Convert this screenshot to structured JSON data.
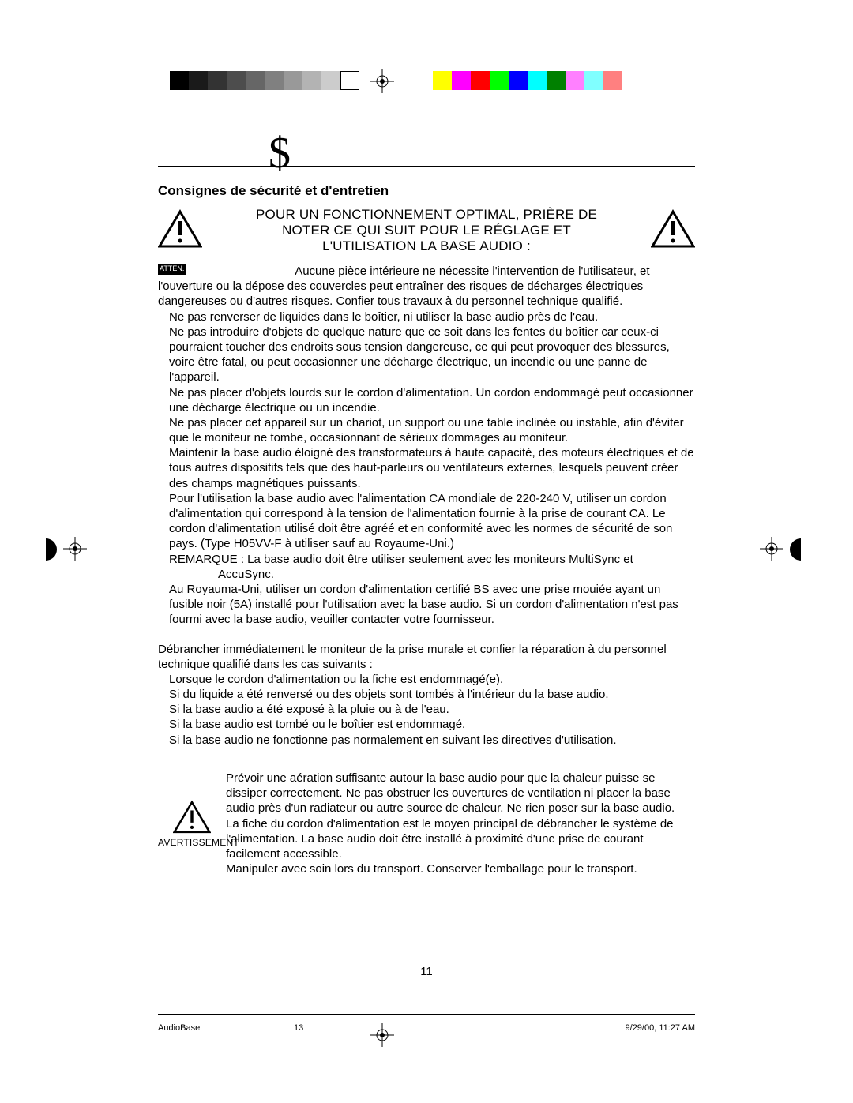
{
  "colorbars": {
    "grayscale": [
      "#000000",
      "#1a1a1a",
      "#333333",
      "#4d4d4d",
      "#666666",
      "#808080",
      "#999999",
      "#b3b3b3",
      "#cccccc",
      "#ffffff"
    ],
    "colors": [
      "#ffff00",
      "#ff00ff",
      "#ff0000",
      "#00ff00",
      "#0000ff",
      "#00ffff",
      "#008000",
      "#ff80ff",
      "#80ffff",
      "#ff8080"
    ]
  },
  "header": {
    "decorative_char": "$",
    "section_title": "Consignes de sécurité et d'entretien"
  },
  "warning_main": {
    "line1": "POUR UN FONCTIONNEMENT OPTIMAL, PRIÈRE DE",
    "line2": "NOTER CE QUI SUIT POUR LE RÉGLAGE ET",
    "line3": "L'UTILISATION LA BASE AUDIO :"
  },
  "attention_label": "ATTEN.",
  "paragraphs": {
    "p1_lead": "Aucune pièce intérieure ne nécessite l'intervention de",
    "p1_rest": "l'utilisateur, et l'ouverture ou la dépose des couvercles peut entraîner des risques de décharges électriques dangereuses ou d'autres risques. Confier tous travaux à du personnel technique qualifié.",
    "p2": "Ne pas renverser de liquides dans le boîtier, ni utiliser la base audio près de l'eau.",
    "p3": "Ne pas introduire d'objets de quelque nature que ce soit dans les fentes du boîtier car ceux-ci pourraient toucher des endroits sous tension dangereuse, ce qui peut provoquer des blessures, voire être fatal, ou peut occasionner une décharge électrique, un incendie ou une panne de l'appareil.",
    "p4": "Ne pas placer d'objets lourds sur le cordon d'alimentation. Un cordon endommagé peut occasionner une décharge électrique ou un incendie.",
    "p5": "Ne pas placer cet appareil sur un chariot, un support ou une table inclinée ou instable, afin d'éviter que le moniteur ne tombe, occasionnant de sérieux dommages au moniteur.",
    "p6": "Maintenir la base audio éloigné des transformateurs à haute capacité, des moteurs électriques et de tous autres dispositifs tels que des haut-parleurs ou ventilateurs externes, lesquels peuvent créer des champs magnétiques puissants.",
    "p7": "Pour l'utilisation la base audio avec l'alimentation CA mondiale de 220-240 V, utiliser un cordon d'alimentation qui correspond à la tension de l'alimentation fournie à la prise de courant CA. Le cordon d'alimentation utilisé doit être agréé et en conformité avec les normes de sécurité de son pays. (Type H05VV-F à utiliser sauf au Royaume-Uni.)",
    "p8a": "REMARQUE :  La base audio doit être utiliser seulement avec les moniteurs MultiSync et",
    "p8b": "AccuSync.",
    "p9": "Au Royauma-Uni, utiliser un cordon d'alimentation certifié BS avec une prise mouiée ayant un fusible noir (5A) installé pour l'utilisation avec la base audio. Si un cordon d'alimentation n'est pas fourmi avec la base audio, veuiller contacter votre fournisseur.",
    "unplug_intro": "Débrancher immédiatement le moniteur de la prise murale et confier la réparation à du personnel technique qualifié dans les cas suivants :",
    "u1": "Lorsque le cordon d'alimentation ou la fiche est endommagé(e).",
    "u2": "Si du liquide a été renversé ou des objets sont tombés à l'intérieur du la base audio.",
    "u3": "Si la base audio a été exposé à la pluie ou à de l'eau.",
    "u4": "Si la base audio est tombé ou le boîtier est endommagé.",
    "u5": "Si la base audio ne fonctionne pas normalement en suivant les directives d'utilisation."
  },
  "warning2": {
    "label": "AVERTISSEMENT",
    "t1": "Prévoir une aération suffisante autour la base audio pour que la chaleur puisse se dissiper correctement. Ne pas obstruer les ouvertures de ventilation ni placer la base audio près d'un radiateur ou autre source de chaleur. Ne rien poser sur la base audio.",
    "t2": "La fiche du cordon d'alimentation est le moyen principal de débrancher le système de l'alimentation. La base audio doit être installé à proximité d'une prise de courant facilement accessible.",
    "t3": "Manipuler avec soin lors du transport. Conserver l'emballage pour le transport."
  },
  "page_number": "11",
  "footer": {
    "left": "AudioBase",
    "mid": "13",
    "right": "9/29/00, 11:27 AM"
  }
}
